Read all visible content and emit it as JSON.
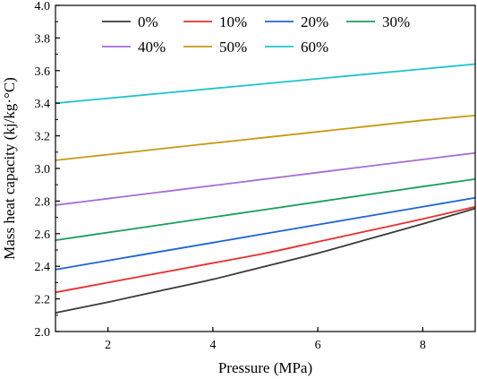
{
  "chart_data": {
    "type": "line",
    "title": "",
    "xlabel": "Pressure (MPa)",
    "ylabel": "Mass heat capacity (kj/kg·°C)",
    "xlim": [
      1,
      9
    ],
    "ylim": [
      2.0,
      4.0
    ],
    "xticks": [
      2,
      4,
      6,
      8
    ],
    "xtick_labels": [
      "2",
      "4",
      "6",
      "8"
    ],
    "yticks": [
      2.0,
      2.2,
      2.4,
      2.6,
      2.8,
      3.0,
      3.2,
      3.4,
      3.6,
      3.8,
      4.0
    ],
    "ytick_labels": [
      "2.0",
      "2.2",
      "2.4",
      "2.6",
      "2.8",
      "3.0",
      "3.2",
      "3.4",
      "3.6",
      "3.8",
      "4.0"
    ],
    "grid": false,
    "legend_position": "top",
    "x": [
      1,
      2,
      3,
      4,
      5,
      6,
      7,
      8,
      9
    ],
    "series": [
      {
        "name": "0%",
        "color": "#3a3a3a",
        "values": [
          2.115,
          2.18,
          2.25,
          2.32,
          2.4,
          2.48,
          2.57,
          2.66,
          2.755
        ]
      },
      {
        "name": "10%",
        "color": "#e8302e",
        "values": [
          2.24,
          2.3,
          2.36,
          2.42,
          2.48,
          2.55,
          2.62,
          2.69,
          2.765
        ]
      },
      {
        "name": "20%",
        "color": "#1f66d1",
        "values": [
          2.38,
          2.435,
          2.49,
          2.545,
          2.6,
          2.655,
          2.71,
          2.765,
          2.82
        ]
      },
      {
        "name": "30%",
        "color": "#1a9e5a",
        "values": [
          2.56,
          2.607,
          2.654,
          2.701,
          2.748,
          2.795,
          2.842,
          2.889,
          2.935
        ]
      },
      {
        "name": "40%",
        "color": "#a66dd9",
        "values": [
          2.775,
          2.815,
          2.855,
          2.895,
          2.935,
          2.975,
          3.015,
          3.055,
          3.095
        ]
      },
      {
        "name": "50%",
        "color": "#c79a12",
        "values": [
          3.05,
          3.085,
          3.12,
          3.155,
          3.19,
          3.225,
          3.26,
          3.295,
          3.325
        ]
      },
      {
        "name": "60%",
        "color": "#1fc4cc",
        "values": [
          3.4,
          3.43,
          3.46,
          3.49,
          3.52,
          3.55,
          3.58,
          3.61,
          3.64
        ]
      }
    ]
  }
}
